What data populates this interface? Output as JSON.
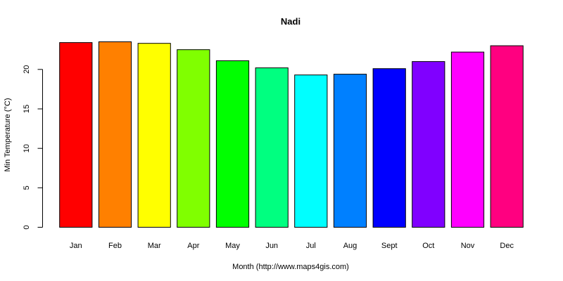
{
  "chart_data": {
    "type": "bar",
    "title": "Nadi",
    "xlabel": "Month (http://www.maps4gis.com)",
    "ylabel": "Min Temperature (°C)",
    "categories": [
      "Jan",
      "Feb",
      "Mar",
      "Apr",
      "May",
      "Jun",
      "Jul",
      "Aug",
      "Sept",
      "Oct",
      "Nov",
      "Dec"
    ],
    "values": [
      23.4,
      23.5,
      23.3,
      22.5,
      21.1,
      20.2,
      19.3,
      19.4,
      20.1,
      21.0,
      22.2,
      23.0
    ],
    "colors": [
      "#FF0000",
      "#FF8000",
      "#FFFF00",
      "#80FF00",
      "#00FF00",
      "#00FF80",
      "#00FFFF",
      "#0080FF",
      "#0000FF",
      "#8000FF",
      "#FF00FF",
      "#FF0080"
    ],
    "yticks": [
      0,
      5,
      10,
      15,
      20
    ],
    "ylim": [
      0,
      23.5
    ],
    "grid": false,
    "legend": "none"
  }
}
